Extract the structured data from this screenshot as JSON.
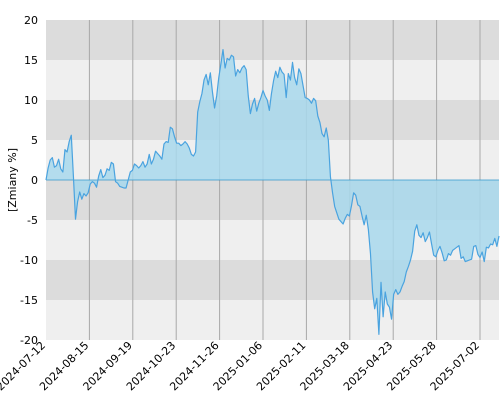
{
  "chart_data": {
    "type": "area",
    "ylabel": "[Zmiany %]",
    "ylim": [
      -20,
      20
    ],
    "y_ticks": [
      20,
      15,
      10,
      5,
      0,
      -5,
      -10,
      -15,
      -20
    ],
    "x_tick_labels": [
      "2024-07-12",
      "2024-08-15",
      "2024-09-19",
      "2024-10-23",
      "2024-11-26",
      "2025-01-06",
      "2025-02-11",
      "2025-03-18",
      "2025-04-23",
      "2025-05-28",
      "2025-07-02"
    ],
    "band_colors": [
      "#dcdcdc",
      "#efefef"
    ],
    "grid_color": "#a8a8a8",
    "line_color": "#4aa3df",
    "fill_color": "#a8d8ec",
    "zero_line_color": "#3399cc",
    "series": [
      {
        "values": [
          0.0,
          1.5,
          2.5,
          2.8,
          1.6,
          1.8,
          2.6,
          1.4,
          1.0,
          3.8,
          3.5,
          4.8,
          5.6,
          0.5,
          -4.9,
          -2.7,
          -1.5,
          -2.4,
          -1.7,
          -2.0,
          -1.6,
          -0.5,
          -0.2,
          -0.4,
          -0.9,
          0.5,
          1.3,
          0.3,
          0.6,
          1.4,
          1.2,
          2.2,
          2.0,
          -0.2,
          -0.4,
          -0.8,
          -0.9,
          -1.0,
          -1.0,
          0.0,
          1.0,
          1.2,
          2.0,
          1.8,
          1.5,
          1.8,
          2.3,
          1.6,
          2.0,
          3.2,
          2.0,
          2.6,
          3.6,
          3.3,
          3.0,
          2.6,
          4.5,
          4.8,
          4.7,
          6.6,
          6.4,
          5.4,
          4.6,
          4.6,
          4.3,
          4.5,
          4.8,
          4.5,
          4.0,
          3.2,
          3.0,
          3.5,
          8.5,
          9.8,
          10.8,
          12.5,
          13.2,
          11.9,
          13.4,
          11.0,
          9.0,
          10.5,
          12.8,
          14.5,
          16.3,
          14.0,
          15.2,
          15.0,
          15.6,
          15.4,
          13.0,
          13.8,
          13.4,
          14.0,
          14.3,
          13.8,
          10.5,
          8.3,
          9.5,
          10.2,
          8.6,
          9.6,
          10.3,
          11.2,
          10.5,
          10.0,
          8.7,
          10.8,
          12.4,
          13.6,
          12.8,
          14.1,
          13.5,
          13.2,
          10.3,
          13.3,
          12.5,
          14.7,
          12.8,
          11.9,
          13.9,
          13.3,
          11.8,
          10.3,
          10.2,
          10.0,
          9.6,
          10.2,
          9.9,
          8.0,
          7.2,
          5.8,
          5.4,
          6.5,
          5.0,
          0.4,
          -1.6,
          -3.3,
          -4.1,
          -4.9,
          -5.2,
          -5.5,
          -4.8,
          -4.3,
          -4.5,
          -3.2,
          -1.6,
          -1.9,
          -3.1,
          -3.3,
          -4.5,
          -5.6,
          -4.4,
          -6.2,
          -9.2,
          -14.0,
          -16.1,
          -14.8,
          -19.3,
          -12.8,
          -17.1,
          -14.0,
          -15.5,
          -15.9,
          -17.4,
          -14.3,
          -13.7,
          -14.3,
          -14.0,
          -13.3,
          -12.7,
          -11.5,
          -10.8,
          -10.0,
          -8.9,
          -6.4,
          -5.6,
          -6.9,
          -7.2,
          -6.6,
          -7.7,
          -7.2,
          -6.5,
          -8.0,
          -9.4,
          -9.6,
          -8.8,
          -8.3,
          -9.1,
          -10.1,
          -10.0,
          -9.2,
          -9.4,
          -8.8,
          -8.6,
          -8.4,
          -8.2,
          -9.8,
          -9.6,
          -10.2,
          -10.1,
          -10.0,
          -9.9,
          -8.3,
          -8.2,
          -9.3,
          -9.7,
          -9.0,
          -10.2,
          -8.4,
          -8.5,
          -8.0,
          -8.1,
          -7.3,
          -8.3,
          -7.0
        ]
      }
    ]
  }
}
